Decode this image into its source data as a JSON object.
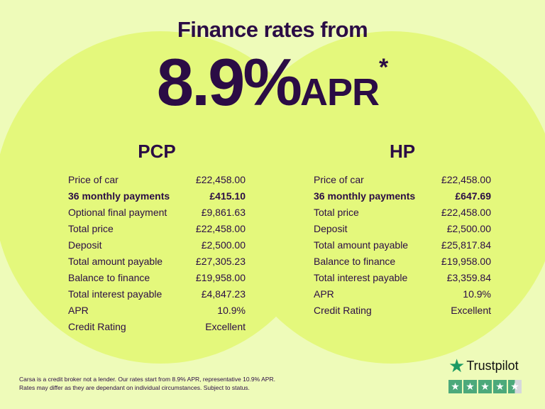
{
  "header": {
    "title": "Finance rates from",
    "rate": "8.9%",
    "apr": "APR",
    "asterisk": "*"
  },
  "pcp": {
    "title": "PCP",
    "rows": [
      {
        "label": "Price of car",
        "value": "£22,458.00",
        "bold": false
      },
      {
        "label": "36 monthly payments",
        "value": "£415.10",
        "bold": true
      },
      {
        "label": "Optional final payment",
        "value": "£9,861.63",
        "bold": false
      },
      {
        "label": "Total price",
        "value": "£22,458.00",
        "bold": false
      },
      {
        "label": "Deposit",
        "value": "£2,500.00",
        "bold": false
      },
      {
        "label": "Total amount payable",
        "value": "£27,305.23",
        "bold": false
      },
      {
        "label": "Balance to finance",
        "value": "£19,958.00",
        "bold": false
      },
      {
        "label": "Total interest payable",
        "value": "£4,847.23",
        "bold": false
      },
      {
        "label": "APR",
        "value": "10.9%",
        "bold": false
      },
      {
        "label": "Credit Rating",
        "value": "Excellent",
        "bold": false
      }
    ]
  },
  "hp": {
    "title": "HP",
    "rows": [
      {
        "label": "Price of car",
        "value": "£22,458.00",
        "bold": false
      },
      {
        "label": "36 monthly payments",
        "value": "£647.69",
        "bold": true
      },
      {
        "label": "Total price",
        "value": "£22,458.00",
        "bold": false
      },
      {
        "label": "Deposit",
        "value": "£2,500.00",
        "bold": false
      },
      {
        "label": "Total amount payable",
        "value": "£25,817.84",
        "bold": false
      },
      {
        "label": "Balance to finance",
        "value": "£19,958.00",
        "bold": false
      },
      {
        "label": "Total interest payable",
        "value": "£3,359.84",
        "bold": false
      },
      {
        "label": "APR",
        "value": "10.9%",
        "bold": false
      },
      {
        "label": "Credit Rating",
        "value": "Excellent",
        "bold": false
      }
    ]
  },
  "disclaimer": {
    "line1": "Carsa is a credit broker not a lender. Our rates start from 8.9% APR, representative 10.9% APR.",
    "line2": "Rates may differ as they are dependant on individual circumstances. Subject to status."
  },
  "trustpilot": {
    "name": "Trustpilot",
    "rating": 4.5,
    "max": 5,
    "color": "#4ca97b"
  },
  "colors": {
    "text": "#2b0c45",
    "background": "#eefbb9",
    "circle": "#e4f87c"
  }
}
